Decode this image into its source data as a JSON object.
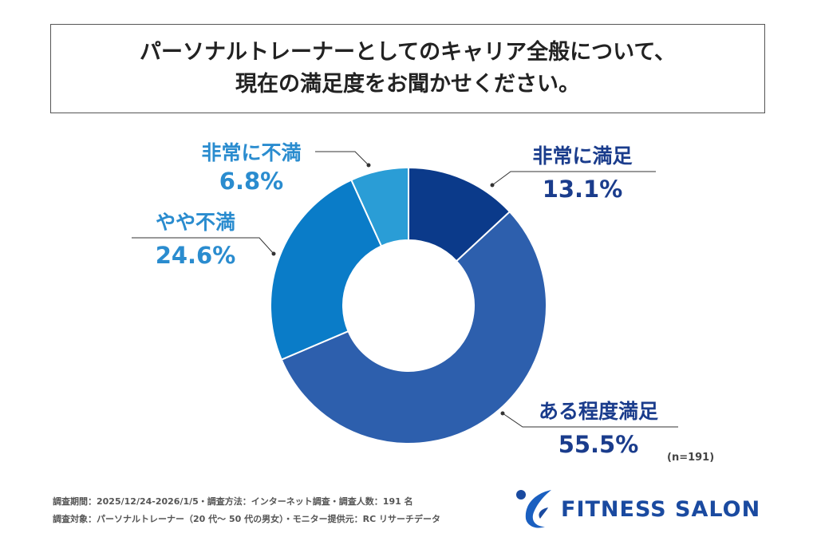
{
  "title": {
    "line1": "パーソナルトレーナーとしてのキャリア全般について、",
    "line2": "現在の満足度をお聞かせください。"
  },
  "chart_data": {
    "type": "pie",
    "donut": true,
    "categories": [
      "非常に満足",
      "ある程度満足",
      "やや不満",
      "非常に不満"
    ],
    "values": [
      13.1,
      55.5,
      24.6,
      6.8
    ],
    "value_labels": [
      "13.1%",
      "55.5%",
      "24.6%",
      "6.8%"
    ],
    "colors": [
      "#0b3a8a",
      "#2d5fad",
      "#0a7cc8",
      "#2a9dd6"
    ],
    "label_colors": [
      "#1a3c8c",
      "#1a3c8c",
      "#2a8ccf",
      "#2a8ccf"
    ],
    "note": "(n=191)"
  },
  "footer": {
    "line1": "調査期間：2025/12/24-2026/1/5・調査方法：インターネット調査・調査人数：191 名",
    "line2": "調査対象：パーソナルトレーナー（20 代～ 50 代の男女）・モニター提供元：RC リサーチデータ"
  },
  "logo": {
    "text": "FITNESS SALON"
  }
}
